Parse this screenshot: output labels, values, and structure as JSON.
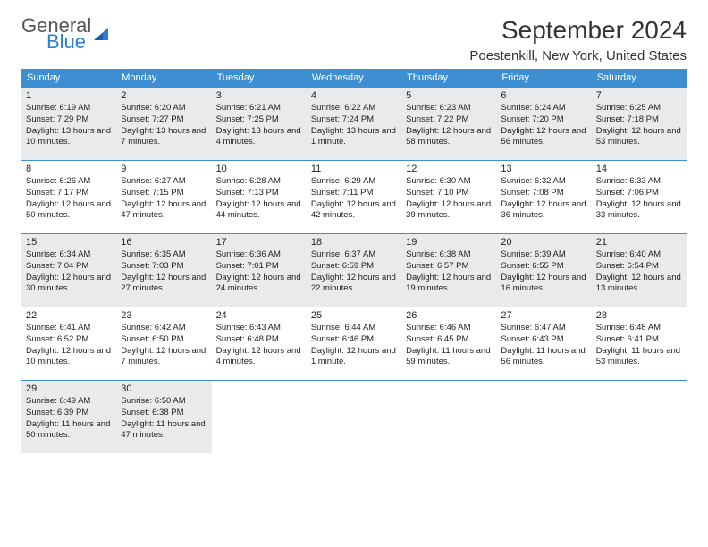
{
  "brand": {
    "line1": "General",
    "line2": "Blue"
  },
  "title": "September 2024",
  "location": "Poestenkill, New York, United States",
  "styles": {
    "header_bg": "#3d8fd1",
    "header_text": "#ffffff",
    "gray_row_bg": "#e9eaeb",
    "border_color": "#3d8fd1",
    "font_size_title": 28,
    "font_size_subtitle": 15,
    "font_size_dow": 11,
    "font_size_daynum": 11,
    "font_size_info": 9.5
  },
  "days_of_week": [
    "Sunday",
    "Monday",
    "Tuesday",
    "Wednesday",
    "Thursday",
    "Friday",
    "Saturday"
  ],
  "start_offset": 0,
  "gray_rows": [
    0,
    2,
    4
  ],
  "days": [
    {
      "n": 1,
      "sunrise": "6:19 AM",
      "sunset": "7:29 PM",
      "daylight": "13 hours and 10 minutes."
    },
    {
      "n": 2,
      "sunrise": "6:20 AM",
      "sunset": "7:27 PM",
      "daylight": "13 hours and 7 minutes."
    },
    {
      "n": 3,
      "sunrise": "6:21 AM",
      "sunset": "7:25 PM",
      "daylight": "13 hours and 4 minutes."
    },
    {
      "n": 4,
      "sunrise": "6:22 AM",
      "sunset": "7:24 PM",
      "daylight": "13 hours and 1 minute."
    },
    {
      "n": 5,
      "sunrise": "6:23 AM",
      "sunset": "7:22 PM",
      "daylight": "12 hours and 58 minutes."
    },
    {
      "n": 6,
      "sunrise": "6:24 AM",
      "sunset": "7:20 PM",
      "daylight": "12 hours and 56 minutes."
    },
    {
      "n": 7,
      "sunrise": "6:25 AM",
      "sunset": "7:18 PM",
      "daylight": "12 hours and 53 minutes."
    },
    {
      "n": 8,
      "sunrise": "6:26 AM",
      "sunset": "7:17 PM",
      "daylight": "12 hours and 50 minutes."
    },
    {
      "n": 9,
      "sunrise": "6:27 AM",
      "sunset": "7:15 PM",
      "daylight": "12 hours and 47 minutes."
    },
    {
      "n": 10,
      "sunrise": "6:28 AM",
      "sunset": "7:13 PM",
      "daylight": "12 hours and 44 minutes."
    },
    {
      "n": 11,
      "sunrise": "6:29 AM",
      "sunset": "7:11 PM",
      "daylight": "12 hours and 42 minutes."
    },
    {
      "n": 12,
      "sunrise": "6:30 AM",
      "sunset": "7:10 PM",
      "daylight": "12 hours and 39 minutes."
    },
    {
      "n": 13,
      "sunrise": "6:32 AM",
      "sunset": "7:08 PM",
      "daylight": "12 hours and 36 minutes."
    },
    {
      "n": 14,
      "sunrise": "6:33 AM",
      "sunset": "7:06 PM",
      "daylight": "12 hours and 33 minutes."
    },
    {
      "n": 15,
      "sunrise": "6:34 AM",
      "sunset": "7:04 PM",
      "daylight": "12 hours and 30 minutes."
    },
    {
      "n": 16,
      "sunrise": "6:35 AM",
      "sunset": "7:03 PM",
      "daylight": "12 hours and 27 minutes."
    },
    {
      "n": 17,
      "sunrise": "6:36 AM",
      "sunset": "7:01 PM",
      "daylight": "12 hours and 24 minutes."
    },
    {
      "n": 18,
      "sunrise": "6:37 AM",
      "sunset": "6:59 PM",
      "daylight": "12 hours and 22 minutes."
    },
    {
      "n": 19,
      "sunrise": "6:38 AM",
      "sunset": "6:57 PM",
      "daylight": "12 hours and 19 minutes."
    },
    {
      "n": 20,
      "sunrise": "6:39 AM",
      "sunset": "6:55 PM",
      "daylight": "12 hours and 16 minutes."
    },
    {
      "n": 21,
      "sunrise": "6:40 AM",
      "sunset": "6:54 PM",
      "daylight": "12 hours and 13 minutes."
    },
    {
      "n": 22,
      "sunrise": "6:41 AM",
      "sunset": "6:52 PM",
      "daylight": "12 hours and 10 minutes."
    },
    {
      "n": 23,
      "sunrise": "6:42 AM",
      "sunset": "6:50 PM",
      "daylight": "12 hours and 7 minutes."
    },
    {
      "n": 24,
      "sunrise": "6:43 AM",
      "sunset": "6:48 PM",
      "daylight": "12 hours and 4 minutes."
    },
    {
      "n": 25,
      "sunrise": "6:44 AM",
      "sunset": "6:46 PM",
      "daylight": "12 hours and 1 minute."
    },
    {
      "n": 26,
      "sunrise": "6:46 AM",
      "sunset": "6:45 PM",
      "daylight": "11 hours and 59 minutes."
    },
    {
      "n": 27,
      "sunrise": "6:47 AM",
      "sunset": "6:43 PM",
      "daylight": "11 hours and 56 minutes."
    },
    {
      "n": 28,
      "sunrise": "6:48 AM",
      "sunset": "6:41 PM",
      "daylight": "11 hours and 53 minutes."
    },
    {
      "n": 29,
      "sunrise": "6:49 AM",
      "sunset": "6:39 PM",
      "daylight": "11 hours and 50 minutes."
    },
    {
      "n": 30,
      "sunrise": "6:50 AM",
      "sunset": "6:38 PM",
      "daylight": "11 hours and 47 minutes."
    }
  ]
}
